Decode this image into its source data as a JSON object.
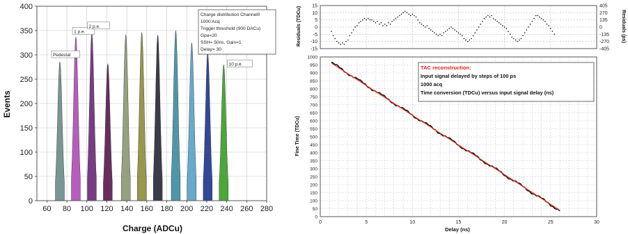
{
  "colors": {
    "peaks": [
      "#6f8d8a",
      "#b04fb6",
      "#6b2c7a",
      "#5a1d4f",
      "#8d9a74",
      "#8d8f3e",
      "#2a2a3a",
      "#3f8ea3",
      "#5aa3c8",
      "#213a8f",
      "#3da02a"
    ],
    "tac_fit": "#e8362a",
    "tac_data": "#111111",
    "residual_points": "#111111"
  },
  "chart_data": [
    {
      "type": "histogram",
      "xlabel": "Charge (ADCu)",
      "ylabel": "Events",
      "xlim": [
        50,
        280
      ],
      "ylim": [
        0,
        400
      ],
      "x_ticks": [
        60,
        80,
        100,
        120,
        140,
        160,
        180,
        200,
        220,
        240,
        260,
        280
      ],
      "y_ticks": [
        0,
        50,
        100,
        150,
        200,
        250,
        300,
        350,
        400
      ],
      "grid": true,
      "series": [
        {
          "center": 73,
          "peak": 286
        },
        {
          "center": 89,
          "peak": 337
        },
        {
          "center": 105,
          "peak": 345
        },
        {
          "center": 121,
          "peak": 282
        },
        {
          "center": 139,
          "peak": 342
        },
        {
          "center": 155,
          "peak": 346
        },
        {
          "center": 171,
          "peak": 341
        },
        {
          "center": 189,
          "peak": 350
        },
        {
          "center": 205,
          "peak": 325
        },
        {
          "center": 221,
          "peak": 303
        },
        {
          "center": 237,
          "peak": 280
        }
      ],
      "annotations": [
        {
          "text": "Pedestal",
          "x": 66,
          "y": 297
        },
        {
          "text": "1 p.e.",
          "x": 87,
          "y": 345
        },
        {
          "text": "2 p.e.",
          "x": 102,
          "y": 356
        },
        {
          "text": "10 p.e.",
          "x": 242,
          "y": 278
        }
      ],
      "info_box": {
        "lines": [
          "Charge distribution Channel0",
          "1000 Acq",
          "Trigger threshold (900 DACu)",
          "Gpa=20",
          "SSH= 50ns, Gain=1",
          "Delay= 30"
        ]
      }
    },
    {
      "type": "scatter",
      "ylabel_left": "Residuals (TDCu)",
      "ylabel_right": "Residuals (ps)",
      "xlim": [
        0,
        30
      ],
      "ylim": [
        -15,
        15
      ],
      "y_ticks_left": [
        -15,
        -10,
        -5,
        0,
        5,
        10,
        15
      ],
      "y_ticks_right": [
        "-405",
        "-270",
        "-135",
        "0",
        "135",
        "270",
        "405"
      ],
      "grid": true,
      "points_x_start": 1.2,
      "points_x_step": 0.2,
      "points_y": [
        -3,
        -6,
        -8,
        -10,
        -11,
        -12,
        -11,
        -12,
        -10,
        -9,
        -6,
        -4,
        -2,
        0,
        1,
        3,
        4,
        5,
        6,
        5,
        6,
        5,
        5,
        4,
        3,
        4,
        2,
        3,
        1,
        2,
        1,
        3,
        2,
        4,
        5,
        6,
        7,
        8,
        9,
        10,
        11,
        10,
        9,
        8,
        9,
        8,
        7,
        5,
        3,
        2,
        1,
        0,
        1,
        -1,
        -2,
        -3,
        -4,
        -5,
        -6,
        -5,
        -6,
        -4,
        -3,
        -2,
        -1,
        0,
        -1,
        -2,
        -3,
        -4,
        -5,
        -6,
        -8,
        -9,
        -10,
        -9,
        -8,
        -6,
        -4,
        -2,
        0,
        2,
        4,
        6,
        7,
        8,
        7,
        8,
        6,
        5,
        4,
        3,
        2,
        1,
        0,
        -1,
        -3,
        -5,
        -7,
        -8,
        -9,
        -10,
        -9,
        -8,
        -6,
        -4,
        -2,
        0,
        2,
        4,
        6,
        8,
        8,
        7,
        6,
        5,
        4,
        2,
        1,
        -1,
        -3,
        -5
      ]
    },
    {
      "type": "line",
      "xlabel": "Delay (ns)",
      "ylabel": "Fine Time (TDCu)",
      "xlim": [
        0,
        30
      ],
      "ylim": [
        0,
        1000
      ],
      "x_ticks": [
        0,
        5,
        10,
        15,
        20,
        25,
        30
      ],
      "y_ticks": [
        0,
        50,
        100,
        150,
        200,
        250,
        300,
        350,
        400,
        450,
        500,
        550,
        600,
        650,
        700,
        750,
        800,
        850,
        900,
        950,
        1000
      ],
      "grid": true,
      "series": [
        {
          "role": "fit",
          "x": [
            1.2,
            26
          ],
          "y": [
            962,
            40
          ]
        },
        {
          "role": "data",
          "x_start": 1.2,
          "x_end": 26,
          "y_start": 965,
          "y_end": 38
        }
      ],
      "legend_box": {
        "title": "TAC reconstruction:",
        "lines": [
          "Input signal delayed by steps of 100 ps",
          "1000 acq",
          "Time conversion (TDCu) versus input signal delay (ns)"
        ]
      }
    }
  ]
}
